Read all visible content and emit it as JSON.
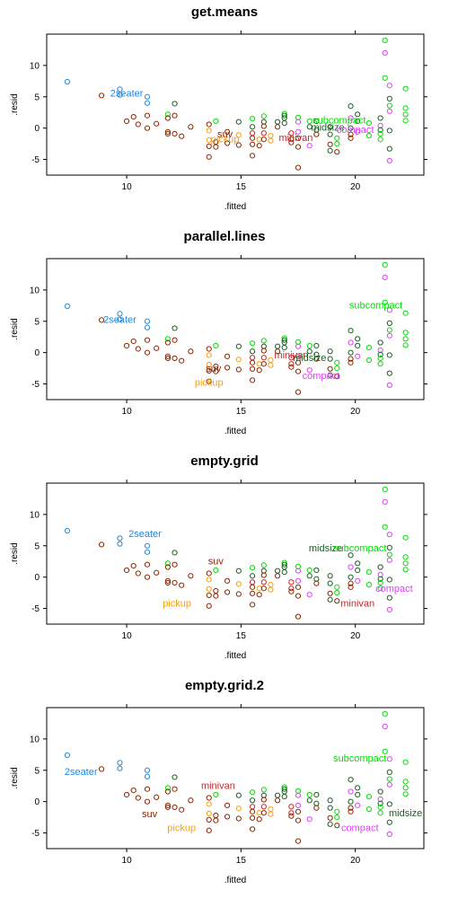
{
  "colors": {
    "2seater": "#1e88e5",
    "compact": "#e040fb",
    "midsize": "#1b5e20",
    "minivan": "#c62828",
    "pickup": "#f59e0b",
    "subcompact": "#00e000",
    "suv": "#8b2500"
  },
  "chart_data": [
    {
      "type": "scatter",
      "title": "get.means",
      "xlabel": ".fitted",
      "ylabel": ".resid",
      "xlim": [
        6.5,
        23
      ],
      "ylim": [
        -7.5,
        15
      ],
      "xticks": [
        "10",
        "15",
        "20"
      ],
      "yticks": [
        "-5",
        "0",
        "5",
        "10"
      ],
      "grid": false,
      "labels": [
        {
          "text": "2seater",
          "x": 10.0,
          "y": 5.6,
          "class": "2seater"
        },
        {
          "text": "subcompact",
          "x": 19.3,
          "y": 1.3,
          "class": "subcompact"
        },
        {
          "text": "midsize",
          "x": 18.8,
          "y": 0.2,
          "class": "midsize"
        },
        {
          "text": "compact",
          "x": 20.0,
          "y": -0.2,
          "class": "compact"
        },
        {
          "text": "suv",
          "x": 14.3,
          "y": -0.9,
          "class": "suv"
        },
        {
          "text": "pickup",
          "x": 14.3,
          "y": -1.7,
          "class": "pickup"
        },
        {
          "text": "minivan",
          "x": 17.4,
          "y": -1.5,
          "class": "minivan"
        }
      ]
    },
    {
      "type": "scatter",
      "title": "parallel.lines",
      "xlabel": ".fitted",
      "ylabel": ".resid",
      "xlim": [
        6.5,
        23
      ],
      "ylim": [
        -7.5,
        15
      ],
      "xticks": [
        "10",
        "15",
        "20"
      ],
      "yticks": [
        "-5",
        "0",
        "5",
        "10"
      ],
      "grid": false,
      "labels": [
        {
          "text": "2seater",
          "x": 9.7,
          "y": 5.3,
          "class": "2seater"
        },
        {
          "text": "subcompact",
          "x": 20.9,
          "y": 7.6,
          "class": "subcompact"
        },
        {
          "text": "minivan",
          "x": 17.2,
          "y": -0.3,
          "class": "minivan"
        },
        {
          "text": "midsize",
          "x": 18.0,
          "y": -0.8,
          "class": "midsize"
        },
        {
          "text": "suv",
          "x": 13.8,
          "y": -2.5,
          "class": "suv"
        },
        {
          "text": "compact",
          "x": 18.5,
          "y": -3.6,
          "class": "compact"
        },
        {
          "text": "pickup",
          "x": 13.6,
          "y": -4.7,
          "class": "pickup"
        }
      ]
    },
    {
      "type": "scatter",
      "title": "empty.grid",
      "xlabel": ".fitted",
      "ylabel": ".resid",
      "xlim": [
        6.5,
        23
      ],
      "ylim": [
        -7.5,
        15
      ],
      "xticks": [
        "10",
        "15",
        "20"
      ],
      "yticks": [
        "-5",
        "0",
        "5",
        "10"
      ],
      "grid": false,
      "labels": [
        {
          "text": "2seater",
          "x": 10.8,
          "y": 7.0,
          "class": "2seater"
        },
        {
          "text": "midsize",
          "x": 18.7,
          "y": 4.7,
          "class": "midsize"
        },
        {
          "text": "subcompact",
          "x": 20.2,
          "y": 4.7,
          "class": "subcompact"
        },
        {
          "text": "suv",
          "x": 13.9,
          "y": 2.6,
          "class": "suv"
        },
        {
          "text": "compact",
          "x": 21.7,
          "y": -1.8,
          "class": "compact"
        },
        {
          "text": "pickup",
          "x": 12.2,
          "y": -4.1,
          "class": "pickup"
        },
        {
          "text": "minivan",
          "x": 20.1,
          "y": -4.1,
          "class": "minivan"
        }
      ]
    },
    {
      "type": "scatter",
      "title": "empty.grid.2",
      "xlabel": ".fitted",
      "ylabel": ".resid",
      "xlim": [
        6.5,
        23
      ],
      "ylim": [
        -7.5,
        15
      ],
      "xticks": [
        "10",
        "15",
        "20"
      ],
      "yticks": [
        "-5",
        "0",
        "5",
        "10"
      ],
      "grid": false,
      "labels": [
        {
          "text": "2seater",
          "x": 8.0,
          "y": 4.8,
          "class": "2seater"
        },
        {
          "text": "subcompact",
          "x": 20.2,
          "y": 7.0,
          "class": "subcompact"
        },
        {
          "text": "minivan",
          "x": 14.0,
          "y": 2.6,
          "class": "minivan"
        },
        {
          "text": "suv",
          "x": 11.0,
          "y": -1.9,
          "class": "suv"
        },
        {
          "text": "midsize",
          "x": 22.2,
          "y": -1.8,
          "class": "midsize"
        },
        {
          "text": "pickup",
          "x": 12.4,
          "y": -4.1,
          "class": "pickup"
        },
        {
          "text": "compact",
          "x": 20.2,
          "y": -4.1,
          "class": "compact"
        }
      ]
    }
  ],
  "points": [
    {
      "x": 7.4,
      "y": 7.4,
      "class": "2seater"
    },
    {
      "x": 8.9,
      "y": 5.2,
      "class": "suv"
    },
    {
      "x": 9.7,
      "y": 6.2,
      "class": "2seater"
    },
    {
      "x": 9.7,
      "y": 5.3,
      "class": "2seater"
    },
    {
      "x": 10.0,
      "y": 1.1,
      "class": "suv"
    },
    {
      "x": 10.3,
      "y": 1.8,
      "class": "suv"
    },
    {
      "x": 10.5,
      "y": 0.6,
      "class": "suv"
    },
    {
      "x": 10.9,
      "y": 5.0,
      "class": "2seater"
    },
    {
      "x": 10.9,
      "y": 4.0,
      "class": "2seater"
    },
    {
      "x": 10.9,
      "y": 2.0,
      "class": "suv"
    },
    {
      "x": 10.9,
      "y": 0.0,
      "class": "suv"
    },
    {
      "x": 11.3,
      "y": 0.7,
      "class": "suv"
    },
    {
      "x": 11.8,
      "y": 2.2,
      "class": "subcompact"
    },
    {
      "x": 11.8,
      "y": 1.6,
      "class": "suv"
    },
    {
      "x": 11.8,
      "y": -0.6,
      "class": "suv"
    },
    {
      "x": 11.8,
      "y": -0.9,
      "class": "suv"
    },
    {
      "x": 12.1,
      "y": 3.9,
      "class": "midsize"
    },
    {
      "x": 12.1,
      "y": 2.0,
      "class": "suv"
    },
    {
      "x": 12.1,
      "y": -0.9,
      "class": "suv"
    },
    {
      "x": 12.4,
      "y": -1.3,
      "class": "suv"
    },
    {
      "x": 12.8,
      "y": 0.2,
      "class": "suv"
    },
    {
      "x": 13.6,
      "y": 0.6,
      "class": "suv"
    },
    {
      "x": 13.6,
      "y": -0.4,
      "class": "pickup"
    },
    {
      "x": 13.6,
      "y": -1.9,
      "class": "pickup"
    },
    {
      "x": 13.6,
      "y": -2.9,
      "class": "suv"
    },
    {
      "x": 13.6,
      "y": -4.6,
      "class": "suv"
    },
    {
      "x": 13.9,
      "y": 1.1,
      "class": "subcompact"
    },
    {
      "x": 13.9,
      "y": -2.2,
      "class": "suv"
    },
    {
      "x": 13.9,
      "y": -3.0,
      "class": "suv"
    },
    {
      "x": 14.4,
      "y": -0.6,
      "class": "suv"
    },
    {
      "x": 14.4,
      "y": -2.4,
      "class": "suv"
    },
    {
      "x": 14.9,
      "y": 1.0,
      "class": "midsize"
    },
    {
      "x": 14.9,
      "y": -1.1,
      "class": "pickup"
    },
    {
      "x": 14.9,
      "y": -2.7,
      "class": "suv"
    },
    {
      "x": 15.5,
      "y": 1.5,
      "class": "subcompact"
    },
    {
      "x": 15.5,
      "y": 0.2,
      "class": "midsize"
    },
    {
      "x": 15.5,
      "y": -0.8,
      "class": "minivan"
    },
    {
      "x": 15.5,
      "y": -1.6,
      "class": "suv"
    },
    {
      "x": 15.5,
      "y": -2.6,
      "class": "suv"
    },
    {
      "x": 15.5,
      "y": -4.4,
      "class": "suv"
    },
    {
      "x": 15.8,
      "y": -1.8,
      "class": "pickup"
    },
    {
      "x": 15.8,
      "y": -2.8,
      "class": "suv"
    },
    {
      "x": 16.0,
      "y": 1.9,
      "class": "subcompact"
    },
    {
      "x": 16.0,
      "y": 1.0,
      "class": "midsize"
    },
    {
      "x": 16.0,
      "y": 0.3,
      "class": "suv"
    },
    {
      "x": 16.0,
      "y": -0.8,
      "class": "minivan"
    },
    {
      "x": 16.0,
      "y": -1.8,
      "class": "suv"
    },
    {
      "x": 16.3,
      "y": -1.2,
      "class": "pickup"
    },
    {
      "x": 16.3,
      "y": -2.0,
      "class": "pickup"
    },
    {
      "x": 16.6,
      "y": 1.0,
      "class": "midsize"
    },
    {
      "x": 16.6,
      "y": 0.2,
      "class": "suv"
    },
    {
      "x": 16.9,
      "y": 2.3,
      "class": "subcompact"
    },
    {
      "x": 16.9,
      "y": 2.0,
      "class": "midsize"
    },
    {
      "x": 16.9,
      "y": 1.6,
      "class": "midsize"
    },
    {
      "x": 16.9,
      "y": 0.8,
      "class": "midsize"
    },
    {
      "x": 17.2,
      "y": -0.8,
      "class": "minivan"
    },
    {
      "x": 17.2,
      "y": -1.8,
      "class": "minivan"
    },
    {
      "x": 17.2,
      "y": -2.3,
      "class": "suv"
    },
    {
      "x": 17.5,
      "y": 1.7,
      "class": "subcompact"
    },
    {
      "x": 17.5,
      "y": 1.0,
      "class": "compact"
    },
    {
      "x": 17.5,
      "y": -0.6,
      "class": "compact"
    },
    {
      "x": 17.5,
      "y": -1.6,
      "class": "suv"
    },
    {
      "x": 17.5,
      "y": -3.0,
      "class": "suv"
    },
    {
      "x": 17.5,
      "y": -6.3,
      "class": "suv"
    },
    {
      "x": 18.0,
      "y": 1.1,
      "class": "subcompact"
    },
    {
      "x": 18.0,
      "y": 0.2,
      "class": "midsize"
    },
    {
      "x": 18.0,
      "y": -2.8,
      "class": "compact"
    },
    {
      "x": 18.3,
      "y": 1.1,
      "class": "midsize"
    },
    {
      "x": 18.3,
      "y": -0.3,
      "class": "midsize"
    },
    {
      "x": 18.3,
      "y": -1.0,
      "class": "suv"
    },
    {
      "x": 18.9,
      "y": 0.2,
      "class": "midsize"
    },
    {
      "x": 18.9,
      "y": -1.0,
      "class": "midsize"
    },
    {
      "x": 18.9,
      "y": -2.6,
      "class": "suv"
    },
    {
      "x": 18.9,
      "y": -3.6,
      "class": "midsize"
    },
    {
      "x": 19.2,
      "y": -1.6,
      "class": "subcompact"
    },
    {
      "x": 19.2,
      "y": -2.5,
      "class": "subcompact"
    },
    {
      "x": 19.2,
      "y": -3.8,
      "class": "suv"
    },
    {
      "x": 19.8,
      "y": 3.5,
      "class": "midsize"
    },
    {
      "x": 19.8,
      "y": 1.6,
      "class": "compact"
    },
    {
      "x": 19.8,
      "y": 0.0,
      "class": "midsize"
    },
    {
      "x": 19.8,
      "y": -1.0,
      "class": "suv"
    },
    {
      "x": 19.8,
      "y": -1.6,
      "class": "suv"
    },
    {
      "x": 20.1,
      "y": 2.2,
      "class": "midsize"
    },
    {
      "x": 20.1,
      "y": 1.1,
      "class": "midsize"
    },
    {
      "x": 20.1,
      "y": -0.6,
      "class": "compact"
    },
    {
      "x": 20.6,
      "y": 0.8,
      "class": "subcompact"
    },
    {
      "x": 20.6,
      "y": -1.2,
      "class": "subcompact"
    },
    {
      "x": 21.1,
      "y": 1.6,
      "class": "midsize"
    },
    {
      "x": 21.1,
      "y": 0.4,
      "class": "compact"
    },
    {
      "x": 21.1,
      "y": -0.3,
      "class": "midsize"
    },
    {
      "x": 21.1,
      "y": -0.9,
      "class": "subcompact"
    },
    {
      "x": 21.1,
      "y": -1.8,
      "class": "subcompact"
    },
    {
      "x": 21.3,
      "y": 14.0,
      "class": "subcompact"
    },
    {
      "x": 21.3,
      "y": 12.0,
      "class": "compact"
    },
    {
      "x": 21.3,
      "y": 8.0,
      "class": "subcompact"
    },
    {
      "x": 21.5,
      "y": 6.8,
      "class": "compact"
    },
    {
      "x": 21.5,
      "y": 4.7,
      "class": "midsize"
    },
    {
      "x": 21.5,
      "y": 3.6,
      "class": "subcompact"
    },
    {
      "x": 21.5,
      "y": 2.7,
      "class": "compact"
    },
    {
      "x": 21.5,
      "y": -0.4,
      "class": "midsize"
    },
    {
      "x": 21.5,
      "y": -3.3,
      "class": "midsize"
    },
    {
      "x": 21.5,
      "y": -5.2,
      "class": "compact"
    },
    {
      "x": 22.2,
      "y": 6.3,
      "class": "subcompact"
    },
    {
      "x": 22.2,
      "y": 3.2,
      "class": "subcompact"
    },
    {
      "x": 22.2,
      "y": 2.2,
      "class": "subcompact"
    },
    {
      "x": 22.2,
      "y": 1.2,
      "class": "subcompact"
    }
  ]
}
